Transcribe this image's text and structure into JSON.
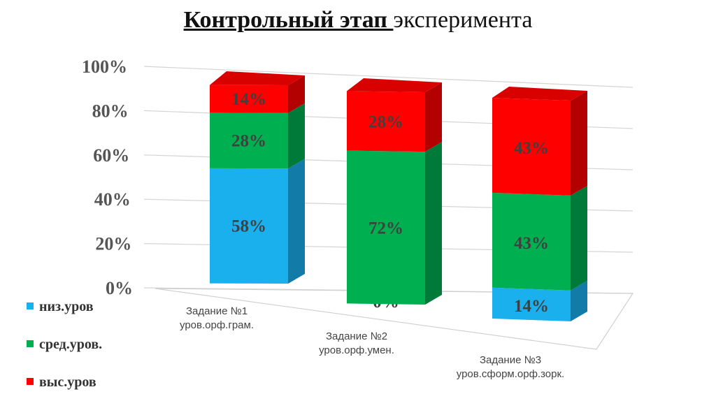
{
  "title": {
    "bold_part": "Контрольный этап ",
    "normal_part": "эксперимента"
  },
  "chart_data": {
    "type": "bar",
    "stacked": true,
    "three_d": true,
    "percent_axis": true,
    "ylim": [
      0,
      100
    ],
    "yticks": [
      "0%",
      "20%",
      "40%",
      "60%",
      "80%",
      "100%"
    ],
    "grid": true,
    "legend_position": "left-bottom",
    "categories": [
      [
        "Задание №1",
        "уров.орф.грам."
      ],
      [
        "Задание №2",
        "уров.орф.умен."
      ],
      [
        "Задание №3",
        "уров.сформ.орф.зорк."
      ]
    ],
    "series": [
      {
        "name": "низ.уров",
        "color": "#1AB0EE",
        "values": [
          58,
          0,
          14
        ],
        "labels": [
          "58%",
          "0%",
          "14%"
        ]
      },
      {
        "name": "сред.уров.",
        "color": "#00AF50",
        "values": [
          28,
          72,
          43
        ],
        "labels": [
          "28%",
          "72%",
          "43%"
        ]
      },
      {
        "name": "выс.уров",
        "color": "#FF0000",
        "values": [
          14,
          28,
          43
        ],
        "labels": [
          "14%",
          "28%",
          "43%"
        ]
      }
    ]
  }
}
